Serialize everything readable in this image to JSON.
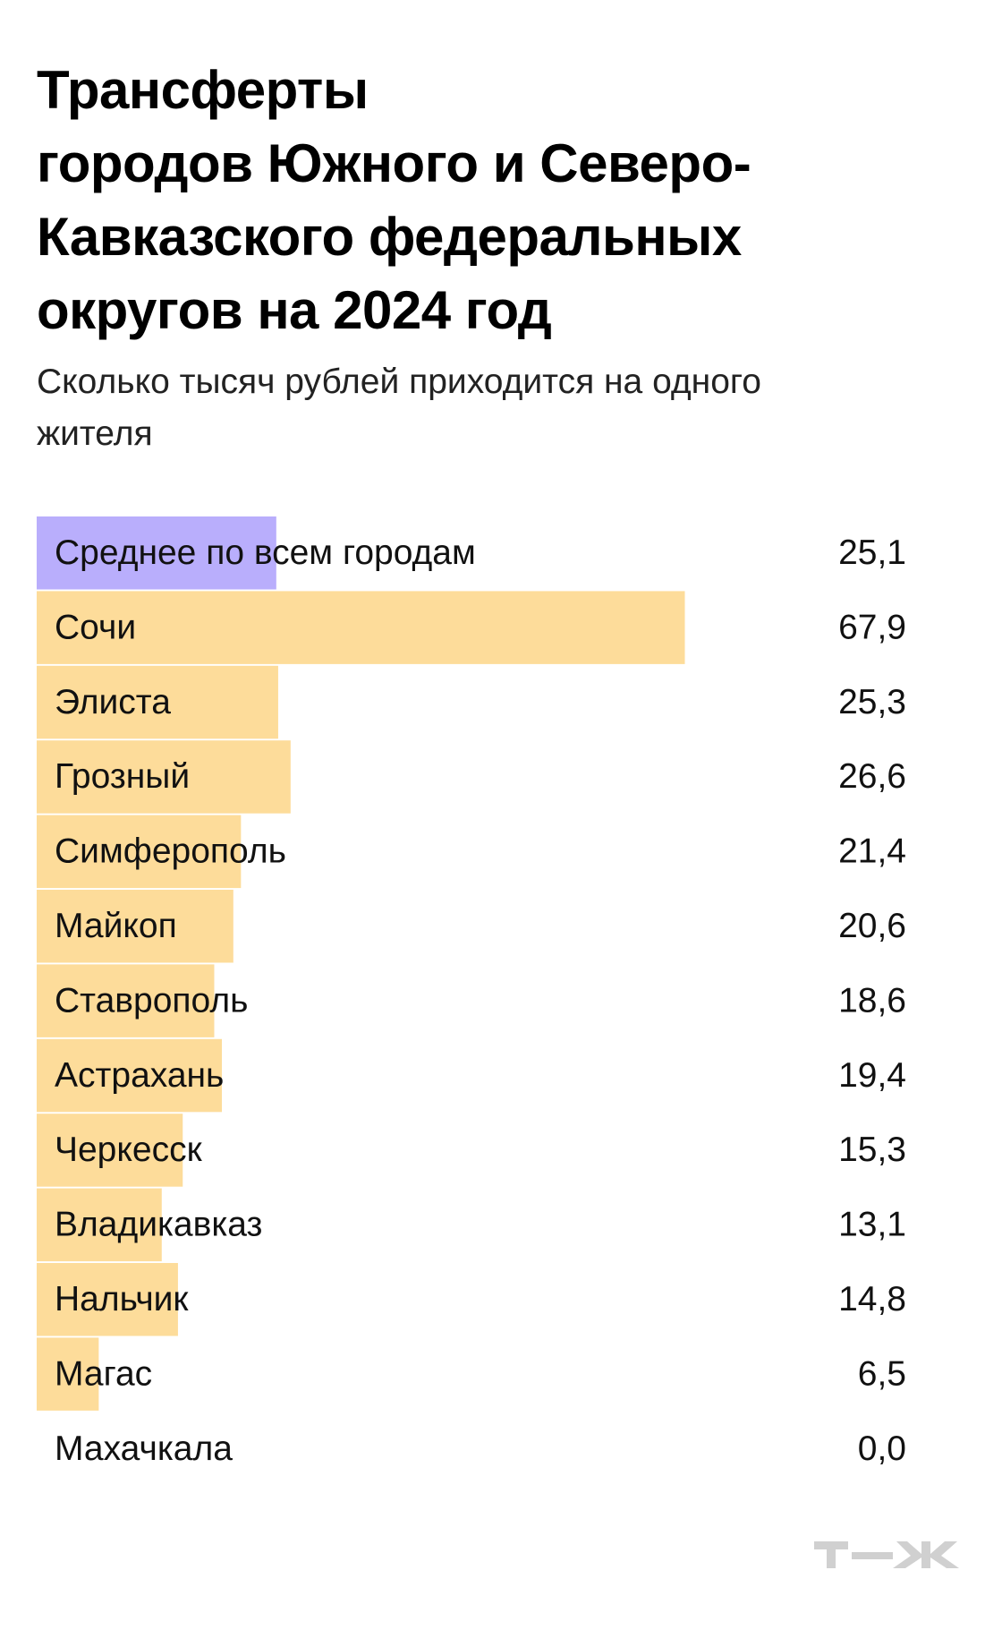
{
  "chart_data": {
    "type": "bar",
    "title": "Трансферты\nгородов Южного и Северо-\nКавказского федеральных\nокругов на 2024 год",
    "subtitle": "Сколько тысяч рублей приходится на одного\nжителя",
    "categories": [
      "Среднее по всем городам",
      "Сочи",
      "Элиста",
      "Грозный",
      "Симферополь",
      "Майкоп",
      "Ставрополь",
      "Астрахань",
      "Черкесск",
      "Владикавказ",
      "Нальчик",
      "Магас",
      "Махачкала"
    ],
    "values": [
      25.1,
      67.9,
      25.3,
      26.6,
      21.4,
      20.6,
      18.6,
      19.4,
      15.3,
      13.1,
      14.8,
      6.5,
      0.0
    ],
    "value_labels": [
      "25,1",
      "67,9",
      "25,3",
      "26,6",
      "21,4",
      "20,6",
      "18,6",
      "19,4",
      "15,3",
      "13,1",
      "14,8",
      "6,5",
      "0,0"
    ],
    "colors": [
      "#b9aefc",
      "#fddc9a",
      "#fddc9a",
      "#fddc9a",
      "#fddc9a",
      "#fddc9a",
      "#fddc9a",
      "#fddc9a",
      "#fddc9a",
      "#fddc9a",
      "#fddc9a",
      "#fddc9a",
      "#fddc9a"
    ]
  }
}
